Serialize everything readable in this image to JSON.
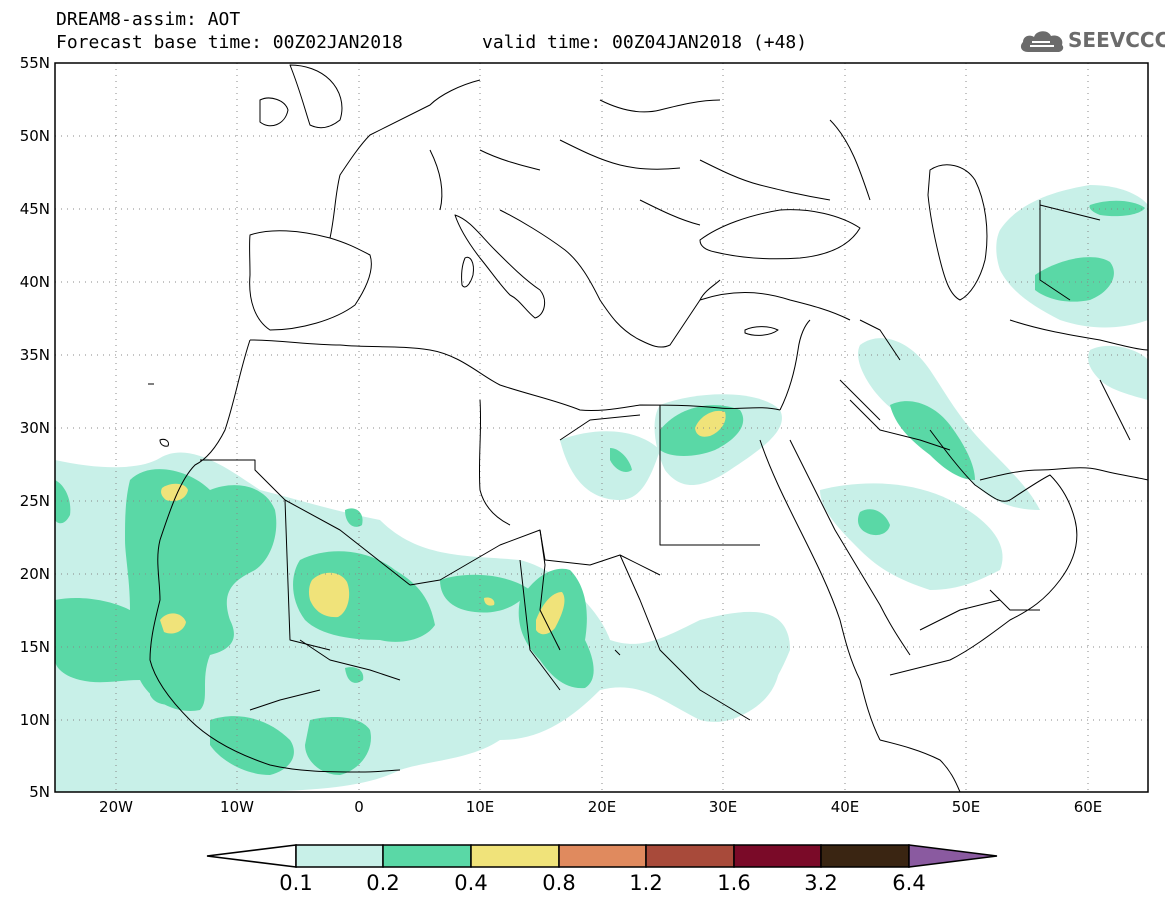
{
  "title": {
    "line1": "DREAM8-assim: AOT",
    "line2": "Forecast base time: 00Z02JAN2018",
    "valid": "valid time: 00Z04JAN2018 (+48)"
  },
  "logo": {
    "text": "SEEVCCC",
    "icon": "cloud-icon"
  },
  "map": {
    "lon_range": [
      -25,
      65
    ],
    "lat_range": [
      5,
      55
    ],
    "y_ticks": [
      "55N",
      "50N",
      "45N",
      "40N",
      "35N",
      "30N",
      "25N",
      "20N",
      "15N",
      "10N",
      "5N"
    ],
    "x_ticks": [
      "20W",
      "10W",
      "0",
      "10E",
      "20E",
      "30E",
      "40E",
      "50E",
      "60E"
    ],
    "grid": "dotted"
  },
  "colorbar": {
    "labels": [
      "0.1",
      "0.2",
      "0.4",
      "0.8",
      "1.2",
      "1.6",
      "3.2",
      "6.4"
    ],
    "colors": [
      "#ffffff",
      "#c8f0e8",
      "#5ad8a6",
      "#f0e37a",
      "#e08a5e",
      "#a84a3a",
      "#7a0a28",
      "#3a2512",
      "#8a5aa0"
    ],
    "extend": "both"
  },
  "colors": {
    "level1": "#c8f0e8",
    "level2": "#5ad8a6",
    "level3": "#f0e37a"
  }
}
